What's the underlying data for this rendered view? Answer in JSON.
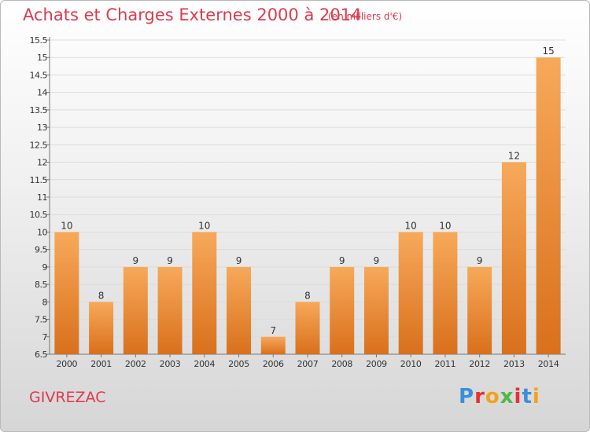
{
  "header": {
    "title": "Achats et Charges Externes 2000 à 2014",
    "subtitle": "(en milliers d'€)"
  },
  "footer": {
    "commune": "GIVREZAC",
    "logo_text": "Proxiti",
    "logo_colors": [
      "#3b8fd8",
      "#e8312f",
      "#f3a21b",
      "#4fb848",
      "#e8312f",
      "#3b8fd8",
      "#f3a21b"
    ]
  },
  "colors": {
    "title": "#de3a4e",
    "bar_light": "#f7a95a",
    "bar_dark": "#d9701c",
    "grid": "#dcdcdc",
    "axis": "#777777"
  },
  "chart_data": {
    "type": "bar",
    "categories": [
      "2000",
      "2001",
      "2002",
      "2003",
      "2004",
      "2005",
      "2006",
      "2007",
      "2008",
      "2009",
      "2010",
      "2011",
      "2012",
      "2013",
      "2014"
    ],
    "values": [
      10,
      8,
      9,
      9,
      10,
      9,
      7,
      8,
      9,
      9,
      10,
      10,
      9,
      12,
      15
    ],
    "title": "Achats et Charges Externes 2000 à 2014",
    "subtitle": "(en milliers d'€)",
    "ylim": [
      6.5,
      15.5
    ],
    "yticks": [
      6.5,
      7,
      7.5,
      8,
      8.5,
      9,
      9.5,
      10,
      10.5,
      11,
      11.5,
      12,
      12.5,
      13,
      13.5,
      14,
      14.5,
      15,
      15.5
    ],
    "grid": true,
    "legend": "none"
  }
}
